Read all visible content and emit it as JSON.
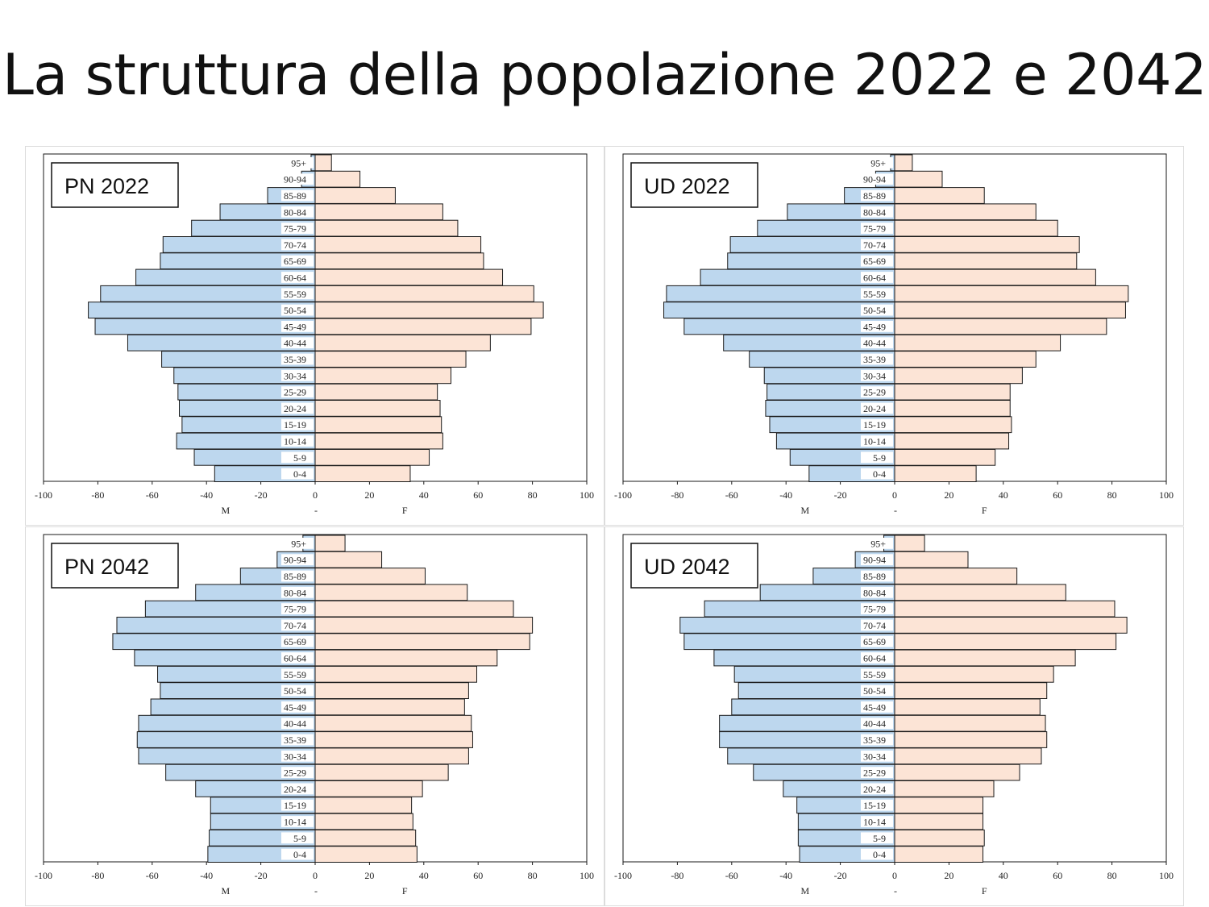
{
  "title": "La struttura della popolazione 2022 e 2042",
  "colors": {
    "male": "#bdd7ee",
    "female": "#fce4d6",
    "border": "#1a1a1a"
  },
  "chart_data": [
    {
      "type": "bar",
      "label": "PN 2022",
      "categories": [
        "0-4",
        "5-9",
        "10-14",
        "15-19",
        "20-24",
        "25-29",
        "30-34",
        "35-39",
        "40-44",
        "45-49",
        "50-54",
        "55-59",
        "60-64",
        "65-69",
        "70-74",
        "75-79",
        "80-84",
        "85-89",
        "90-94",
        "95+"
      ],
      "series": [
        {
          "name": "M",
          "values": [
            -37,
            -44.5,
            -51,
            -49,
            -50,
            -50.5,
            -52,
            -56.5,
            -69,
            -81,
            -83.5,
            -79,
            -66,
            -57,
            -56,
            -45.5,
            -35,
            -17.5,
            -5,
            -1.5
          ]
        },
        {
          "name": "F",
          "values": [
            35,
            42,
            47,
            46.5,
            46,
            45,
            50,
            55.5,
            64.5,
            79.5,
            84,
            80.5,
            69,
            62,
            61,
            52.5,
            47,
            29.5,
            16.5,
            6
          ]
        }
      ],
      "xlabel_left": "M",
      "xlabel_center": "-",
      "xlabel_right": "F",
      "xticks": [
        -100,
        -80,
        -60,
        -40,
        -20,
        0,
        20,
        40,
        60,
        80,
        100
      ],
      "xlim": [
        -100,
        100
      ]
    },
    {
      "type": "bar",
      "label": "UD 2022",
      "categories": [
        "0-4",
        "5-9",
        "10-14",
        "15-19",
        "20-24",
        "25-29",
        "30-34",
        "35-39",
        "40-44",
        "45-49",
        "50-54",
        "55-59",
        "60-64",
        "65-69",
        "70-74",
        "75-79",
        "80-84",
        "85-89",
        "90-94",
        "95+"
      ],
      "series": [
        {
          "name": "M",
          "values": [
            -31.5,
            -38.5,
            -43.5,
            -46,
            -47.5,
            -47,
            -48,
            -53.5,
            -63,
            -77.5,
            -85,
            -84,
            -71.5,
            -61.5,
            -60.5,
            -50.5,
            -39.5,
            -18.5,
            -7,
            -1.5
          ]
        },
        {
          "name": "F",
          "values": [
            30,
            37,
            42,
            43,
            42.5,
            42.5,
            47,
            52,
            61,
            78,
            85,
            86,
            74,
            67,
            68,
            60,
            52,
            33,
            17.5,
            6.5
          ]
        }
      ],
      "xlabel_left": "M",
      "xlabel_center": "-",
      "xlabel_right": "F",
      "xticks": [
        -100,
        -80,
        -60,
        -40,
        -20,
        0,
        20,
        40,
        60,
        80,
        100
      ],
      "xlim": [
        -100,
        100
      ]
    },
    {
      "type": "bar",
      "label": "PN 2042",
      "categories": [
        "0-4",
        "5-9",
        "10-14",
        "15-19",
        "20-24",
        "25-29",
        "30-34",
        "35-39",
        "40-44",
        "45-49",
        "50-54",
        "55-59",
        "60-64",
        "65-69",
        "70-74",
        "75-79",
        "80-84",
        "85-89",
        "90-94",
        "95+"
      ],
      "series": [
        {
          "name": "M",
          "values": [
            -39.5,
            -39,
            -38.5,
            -38.5,
            -44,
            -55,
            -65,
            -65.5,
            -65,
            -60.5,
            -57,
            -58,
            -66.5,
            -74.5,
            -73,
            -62.5,
            -44,
            -27.5,
            -14,
            -4.5
          ]
        },
        {
          "name": "F",
          "values": [
            37.5,
            37,
            36,
            35.5,
            39.5,
            49,
            56.5,
            58,
            57.5,
            55,
            56.5,
            59.5,
            67,
            79,
            80,
            73,
            56,
            40.5,
            24.5,
            11
          ]
        }
      ],
      "xlabel_left": "M",
      "xlabel_center": "-",
      "xlabel_right": "F",
      "xticks": [
        -100,
        -80,
        -60,
        -40,
        -20,
        0,
        20,
        40,
        60,
        80,
        100
      ],
      "xlim": [
        -100,
        100
      ]
    },
    {
      "type": "bar",
      "label": "UD 2042",
      "categories": [
        "0-4",
        "5-9",
        "10-14",
        "15-19",
        "20-24",
        "25-29",
        "30-34",
        "35-39",
        "40-44",
        "45-49",
        "50-54",
        "55-59",
        "60-64",
        "65-69",
        "70-74",
        "75-79",
        "80-84",
        "85-89",
        "90-94",
        "95+"
      ],
      "series": [
        {
          "name": "M",
          "values": [
            -35,
            -35.5,
            -35.5,
            -36,
            -41,
            -52,
            -61.5,
            -64.5,
            -64.5,
            -60,
            -57.5,
            -59,
            -66.5,
            -77.5,
            -79,
            -70,
            -49.5,
            -30,
            -14.5,
            -4
          ]
        },
        {
          "name": "F",
          "values": [
            32.5,
            33,
            32.5,
            32.5,
            36.5,
            46,
            54,
            56,
            55.5,
            53.5,
            56,
            58.5,
            66.5,
            81.5,
            85.5,
            81,
            63,
            45,
            27,
            11
          ]
        }
      ],
      "xlabel_left": "M",
      "xlabel_center": "-",
      "xlabel_right": "F",
      "xticks": [
        -100,
        -80,
        -60,
        -40,
        -20,
        0,
        20,
        40,
        60,
        80,
        100
      ],
      "xlim": [
        -100,
        100
      ]
    }
  ]
}
